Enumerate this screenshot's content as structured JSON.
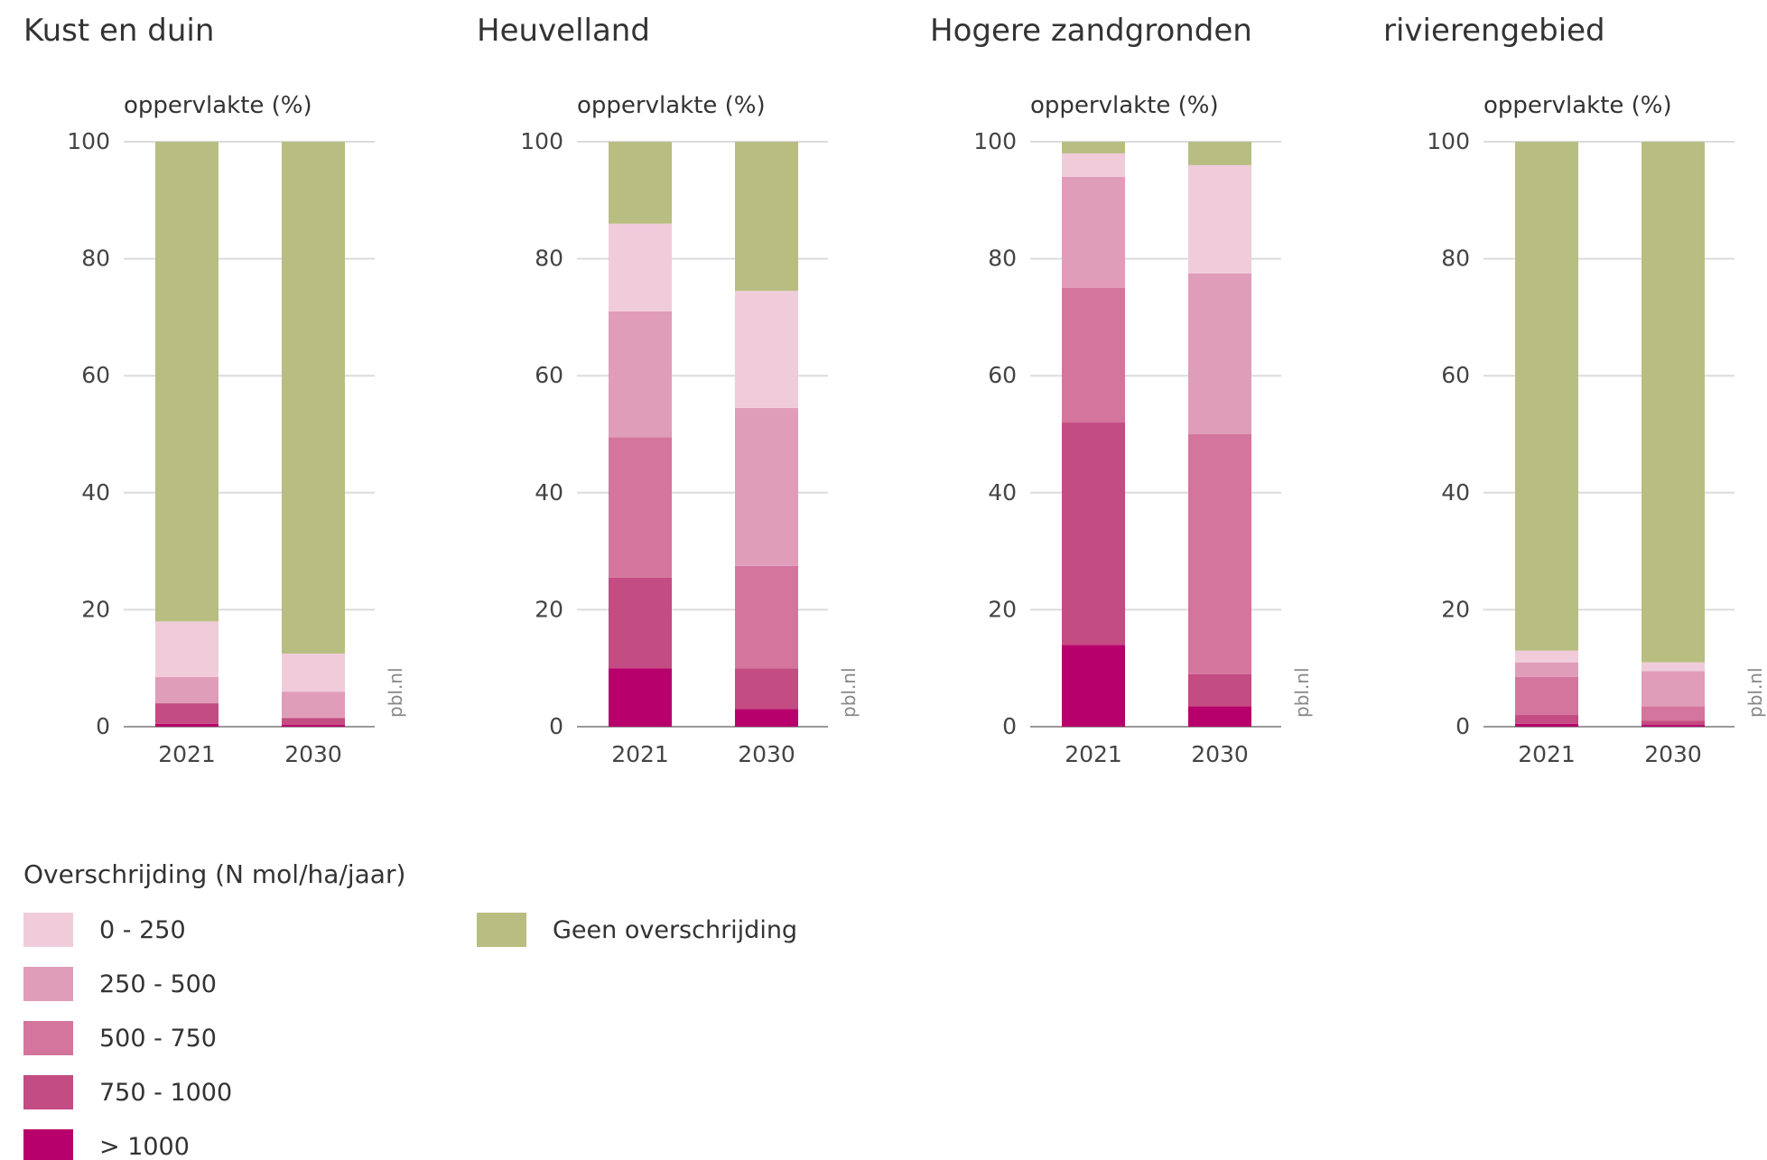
{
  "chart_data": [
    {
      "type": "bar",
      "stacked": true,
      "title": "Kust en duin",
      "ylabel": "oppervlakte (%)",
      "ylim": [
        0,
        100
      ],
      "yticks": [
        0,
        20,
        40,
        60,
        80,
        100
      ],
      "categories": [
        "2021",
        "2030"
      ],
      "source": "pbl.nl",
      "series": [
        {
          "name": "> 1000",
          "values": [
            0.5,
            0.3
          ]
        },
        {
          "name": "750 - 1000",
          "values": [
            3.5,
            1.2
          ]
        },
        {
          "name": "500 - 750",
          "values": [
            0,
            0
          ]
        },
        {
          "name": "250 - 500",
          "values": [
            4.5,
            4.5
          ]
        },
        {
          "name": "0 - 250",
          "values": [
            9.5,
            6.5
          ]
        },
        {
          "name": "Geen overschrijding",
          "values": [
            82,
            87.5
          ]
        }
      ]
    },
    {
      "type": "bar",
      "stacked": true,
      "title": "Heuvelland",
      "ylabel": "oppervlakte (%)",
      "ylim": [
        0,
        100
      ],
      "yticks": [
        0,
        20,
        40,
        60,
        80,
        100
      ],
      "categories": [
        "2021",
        "2030"
      ],
      "source": "pbl.nl",
      "series": [
        {
          "name": "> 1000",
          "values": [
            10,
            3
          ]
        },
        {
          "name": "750 - 1000",
          "values": [
            15.5,
            7
          ]
        },
        {
          "name": "500 - 750",
          "values": [
            24,
            17.5
          ]
        },
        {
          "name": "250 - 500",
          "values": [
            21.5,
            27
          ]
        },
        {
          "name": "0 - 250",
          "values": [
            15,
            20
          ]
        },
        {
          "name": "Geen overschrijding",
          "values": [
            14,
            25.5
          ]
        }
      ]
    },
    {
      "type": "bar",
      "stacked": true,
      "title": "Hogere zandgronden",
      "ylabel": "oppervlakte (%)",
      "ylim": [
        0,
        100
      ],
      "yticks": [
        0,
        20,
        40,
        60,
        80,
        100
      ],
      "categories": [
        "2021",
        "2030"
      ],
      "source": "pbl.nl",
      "series": [
        {
          "name": "> 1000",
          "values": [
            14,
            3.5
          ]
        },
        {
          "name": "750 - 1000",
          "values": [
            38,
            5.5
          ]
        },
        {
          "name": "500 - 750",
          "values": [
            23,
            41
          ]
        },
        {
          "name": "250 - 500",
          "values": [
            19,
            27.5
          ]
        },
        {
          "name": "0 - 250",
          "values": [
            4,
            18.5
          ]
        },
        {
          "name": "Geen overschrijding",
          "values": [
            2,
            4
          ]
        }
      ]
    },
    {
      "type": "bar",
      "stacked": true,
      "title": "rivierengebied",
      "ylabel": "oppervlakte (%)",
      "ylim": [
        0,
        100
      ],
      "yticks": [
        0,
        20,
        40,
        60,
        80,
        100
      ],
      "categories": [
        "2021",
        "2030"
      ],
      "source": "pbl.nl",
      "series": [
        {
          "name": "> 1000",
          "values": [
            0.5,
            0.3
          ]
        },
        {
          "name": "750 - 1000",
          "values": [
            1.5,
            0.7
          ]
        },
        {
          "name": "500 - 750",
          "values": [
            6.5,
            2.5
          ]
        },
        {
          "name": "250 - 500",
          "values": [
            2.5,
            6
          ]
        },
        {
          "name": "0 - 250",
          "values": [
            2,
            1.5
          ]
        },
        {
          "name": "Geen overschrijding",
          "values": [
            87,
            89
          ]
        }
      ]
    }
  ],
  "legend": {
    "title": "Overschrijding (N mol/ha/jaar)",
    "items": [
      {
        "label": "0 - 250",
        "color": "#f0ccda"
      },
      {
        "label": "250 - 500",
        "color": "#e09db9"
      },
      {
        "label": "500 - 750",
        "color": "#d4759e"
      },
      {
        "label": "750 - 1000",
        "color": "#c34c82"
      },
      {
        "label": "> 1000",
        "color": "#b7006b"
      },
      {
        "label": "Geen overschrijding",
        "color": "#b8be82"
      }
    ]
  },
  "colors": {
    "> 1000": "#b7006b",
    "750 - 1000": "#c34c82",
    "500 - 750": "#d4759e",
    "250 - 500": "#e09db9",
    "0 - 250": "#f0ccda",
    "Geen overschrijding": "#b8be82"
  }
}
